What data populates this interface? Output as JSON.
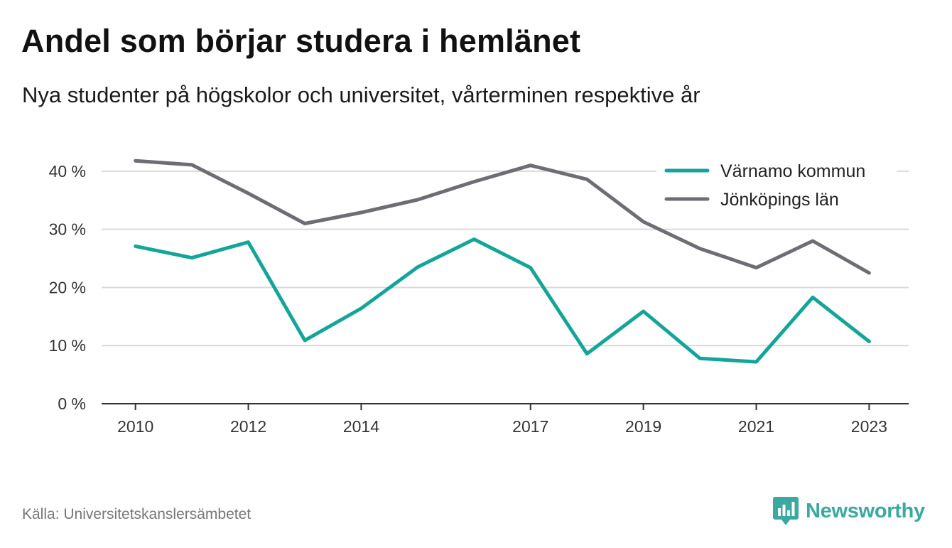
{
  "header": {
    "title": "Andel som börjar studera i hemlänet",
    "subtitle": "Nya studenter på högskolor och universitet, vårterminen respektive år"
  },
  "footer": {
    "source": "Källa: Universitetskanslersämbetet",
    "brand": "Newsworthy"
  },
  "colors": {
    "accent": "#13a59a",
    "secondary": "#6d6d74",
    "brand": "#3aa99f",
    "grid": "#d9d9d9",
    "axis": "#333333"
  },
  "chart_data": {
    "type": "line",
    "x": [
      2010,
      2011,
      2012,
      2013,
      2014,
      2015,
      2016,
      2017,
      2018,
      2019,
      2020,
      2021,
      2022,
      2023
    ],
    "x_tick_labels": [
      "2010",
      "2012",
      "2014",
      "2017",
      "2019",
      "2021",
      "2023"
    ],
    "y_tick_labels": [
      "0 %",
      "10 %",
      "20 %",
      "30 %",
      "40 %"
    ],
    "y_ticks": [
      0,
      10,
      20,
      30,
      40
    ],
    "ylim": [
      0,
      45
    ],
    "xlim": [
      2009.4,
      2023.7
    ],
    "grid": true,
    "legend_position": "top-right",
    "series": [
      {
        "name": "Värnamo kommun",
        "color": "#13a59a",
        "values": [
          27.1,
          25.1,
          27.8,
          10.9,
          16.4,
          23.5,
          28.3,
          23.4,
          8.6,
          15.9,
          7.8,
          7.2,
          18.3,
          10.7
        ]
      },
      {
        "name": "Jönköpings län",
        "color": "#6d6d74",
        "values": [
          41.8,
          41.1,
          36.2,
          31.0,
          32.9,
          35.1,
          38.2,
          41.0,
          38.6,
          31.3,
          26.7,
          23.4,
          28.0,
          22.5
        ]
      }
    ]
  }
}
